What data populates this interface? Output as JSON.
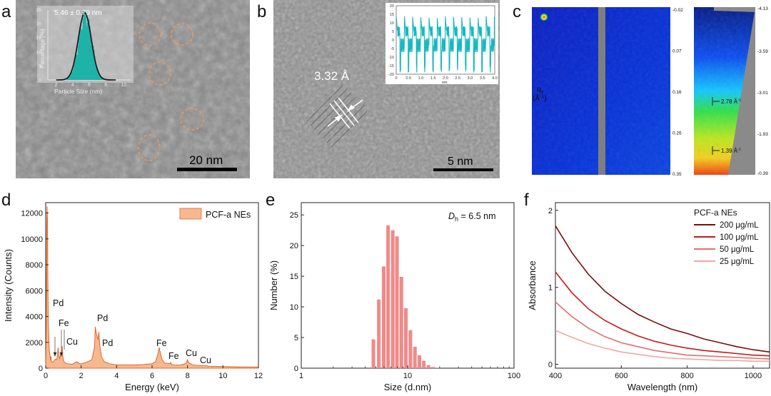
{
  "figure": {
    "panel_letters": [
      "a",
      "b",
      "c",
      "d",
      "e",
      "f"
    ],
    "colors": {
      "edx_fill": "#f6b98f",
      "edx_stroke": "#e0672c",
      "dls_bar": "#f08a8a",
      "tem_bg": "#8f8f8f",
      "gisaxs_blue": "#0a2fd0",
      "uv_dark": "#7a0c0c",
      "uv_mid": "#c41a1a",
      "uv_light": "#e0706e",
      "uv_pale": "#f0a8a4"
    }
  },
  "panel_a": {
    "size_label": "5.46 ± 0.79 nm",
    "inset_ylabel": "Percentage (%)",
    "inset_xlabel": "Particle Size (nm)",
    "inset_yticks": [
      "0",
      "5",
      "10",
      "15",
      "20",
      "25"
    ],
    "inset_xticks": [
      "2",
      "4",
      "6",
      "8",
      "10"
    ],
    "scale_bar": "20 nm"
  },
  "panel_b": {
    "lattice_label": "3.32 Å",
    "inset_yticks": [
      "20",
      "15",
      "10",
      "5",
      "0",
      "-5",
      "-10",
      "-15",
      "-20"
    ],
    "inset_xticks": [
      "0",
      "0.5",
      "1.0",
      "1.5",
      "2.0",
      "2.5",
      "3.0",
      "3.5",
      "4.0"
    ],
    "inset_xunit": "nm",
    "scale_bar": "5 nm"
  },
  "panel_c": {
    "qz_label": "q",
    "qz_sub": "z",
    "qz_unit_a": "(Å",
    "qz_unit_sup": "-1",
    "qz_unit_b": ")",
    "mid_axis": [
      "-0.02",
      "0.07",
      "0.16",
      "0.26",
      "0.35"
    ],
    "right_axis": [
      "-4.13",
      "-3.59",
      "-3.01",
      "-1.93",
      "-0.39"
    ],
    "peak1": "2.78 Å",
    "peak1_sup": "-1",
    "peak2": "1.39 Å",
    "peak2_sup": "-1"
  },
  "chart_data": [
    {
      "type": "area",
      "panel": "d",
      "xlabel": "Energy (keV)",
      "ylabel": "Intensity (Counts)",
      "xlim": [
        0,
        12
      ],
      "ylim": [
        0,
        12800
      ],
      "xticks": [
        "0",
        "2",
        "4",
        "6",
        "8",
        "10",
        "12"
      ],
      "yticks": [
        "0",
        "2000",
        "4000",
        "6000",
        "8000",
        "10000",
        "12000"
      ],
      "series": [
        {
          "name": "PCF-a NEs",
          "x": [
            0,
            0.03,
            0.06,
            0.08,
            0.1,
            0.12,
            0.15,
            0.2,
            0.28,
            0.3,
            0.32,
            0.4,
            0.55,
            0.6,
            0.65,
            0.7,
            0.75,
            0.8,
            0.85,
            0.9,
            0.93,
            0.95,
            1.0,
            1.05,
            1.2,
            1.5,
            1.75,
            1.9,
            2.0,
            2.3,
            2.6,
            2.75,
            2.8,
            2.85,
            2.95,
            3.0,
            3.05,
            3.15,
            3.3,
            3.6,
            4.0,
            4.5,
            5.0,
            5.5,
            6.0,
            6.2,
            6.35,
            6.4,
            6.45,
            6.55,
            6.7,
            7.0,
            7.05,
            7.1,
            7.3,
            7.6,
            7.9,
            8.0,
            8.05,
            8.1,
            8.3,
            8.7,
            8.9,
            9.0,
            9.2,
            10.0,
            11.0,
            12.0
          ],
          "y": [
            150,
            2500,
            11000,
            12500,
            11500,
            7000,
            3500,
            1400,
            600,
            900,
            500,
            450,
            700,
            650,
            800,
            1600,
            900,
            750,
            1200,
            1000,
            1700,
            1100,
            650,
            450,
            350,
            300,
            500,
            350,
            350,
            450,
            650,
            1600,
            3200,
            2700,
            2200,
            2800,
            1800,
            900,
            500,
            350,
            250,
            250,
            250,
            280,
            350,
            500,
            1200,
            1600,
            1300,
            700,
            400,
            350,
            450,
            300,
            230,
            250,
            350,
            650,
            450,
            400,
            250,
            200,
            200,
            200,
            150,
            120,
            100,
            80
          ]
        }
      ],
      "annotations": [
        "Pd",
        "Fe",
        "Cu",
        "Pd",
        "Pd",
        "Fe",
        "Fe",
        "Cu",
        "Cu"
      ]
    },
    {
      "type": "bar",
      "panel": "e",
      "xlabel": "Size (d.nm)",
      "ylabel": "Number (%)",
      "xscale": "log",
      "xlim": [
        1,
        100
      ],
      "ylim": [
        0,
        27
      ],
      "xticks": [
        "1",
        "10",
        "100"
      ],
      "yticks": [
        "0",
        "5",
        "10",
        "15",
        "20",
        "25"
      ],
      "annotation_sym": "D",
      "annotation_sub": "h",
      "annotation_rest": " = 6.5 nm",
      "categories": [
        4.8,
        5.4,
        6.0,
        6.6,
        7.3,
        8.0,
        8.8,
        9.7,
        10.7,
        11.8,
        13.0,
        14.3,
        15.8,
        17.4,
        19.2
      ],
      "values": [
        4.7,
        11.2,
        16.6,
        23.3,
        22.5,
        21.5,
        14.9,
        9.8,
        6.2,
        3.5,
        2.1,
        1.2,
        0.5,
        0.2,
        0.1
      ]
    },
    {
      "type": "line",
      "panel": "f",
      "xlabel": "Wavelength (nm)",
      "ylabel": "Absorbance",
      "xlim": [
        400,
        1050
      ],
      "ylim": [
        -0.05,
        2.1
      ],
      "xticks": [
        "400",
        "600",
        "800",
        "1000"
      ],
      "yticks": [
        "0",
        "1",
        "2"
      ],
      "legend_title": "PCF-a NEs",
      "x": [
        400,
        450,
        500,
        550,
        600,
        650,
        700,
        750,
        800,
        850,
        900,
        950,
        1000,
        1050
      ],
      "series": [
        {
          "name": "200 μg/mL",
          "values": [
            1.8,
            1.45,
            1.17,
            0.95,
            0.79,
            0.65,
            0.55,
            0.46,
            0.4,
            0.33,
            0.28,
            0.23,
            0.19,
            0.16
          ]
        },
        {
          "name": "100 μg/mL",
          "values": [
            1.2,
            0.93,
            0.72,
            0.57,
            0.46,
            0.37,
            0.3,
            0.25,
            0.21,
            0.18,
            0.16,
            0.14,
            0.12,
            0.11
          ]
        },
        {
          "name": "50 μg/mL",
          "values": [
            0.81,
            0.62,
            0.47,
            0.36,
            0.28,
            0.23,
            0.18,
            0.15,
            0.12,
            0.11,
            0.1,
            0.09,
            0.08,
            0.07
          ]
        },
        {
          "name": "25 μg/mL",
          "values": [
            0.44,
            0.35,
            0.27,
            0.21,
            0.16,
            0.13,
            0.1,
            0.08,
            0.07,
            0.06,
            0.05,
            0.05,
            0.04,
            0.04
          ]
        }
      ]
    }
  ]
}
